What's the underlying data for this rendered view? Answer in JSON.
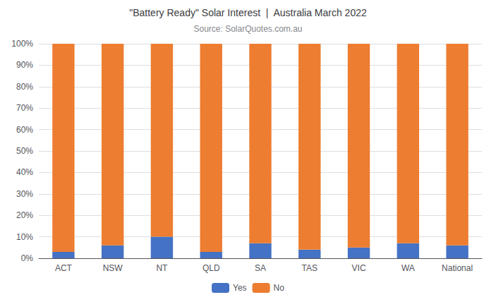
{
  "chart_data": {
    "type": "bar",
    "title": "\"Battery Ready\" Solar Interest  |  Australia March 2022",
    "subtitle": "Source: SolarQuotes.com.au",
    "categories": [
      "ACT",
      "NSW",
      "NT",
      "QLD",
      "SA",
      "TAS",
      "VIC",
      "WA",
      "National"
    ],
    "series": [
      {
        "name": "Yes",
        "color": "#4472C4",
        "values": [
          3,
          6,
          10,
          3,
          7,
          4,
          5,
          7,
          6
        ]
      },
      {
        "name": "No",
        "color": "#ED7D31",
        "values": [
          97,
          94,
          90,
          97,
          93,
          96,
          95,
          93,
          94
        ]
      }
    ],
    "stacked": true,
    "ylim": [
      0,
      100
    ],
    "yticks": [
      {
        "value": 0,
        "label": "0%"
      },
      {
        "value": 10,
        "label": "10%"
      },
      {
        "value": 20,
        "label": "20%"
      },
      {
        "value": 30,
        "label": "30%"
      },
      {
        "value": 40,
        "label": "40%"
      },
      {
        "value": 50,
        "label": "50%"
      },
      {
        "value": 60,
        "label": "60%"
      },
      {
        "value": 70,
        "label": "70%"
      },
      {
        "value": 80,
        "label": "80%"
      },
      {
        "value": 90,
        "label": "90%"
      },
      {
        "value": 100,
        "label": "100%"
      }
    ],
    "grid": true,
    "legend": "bottom"
  }
}
